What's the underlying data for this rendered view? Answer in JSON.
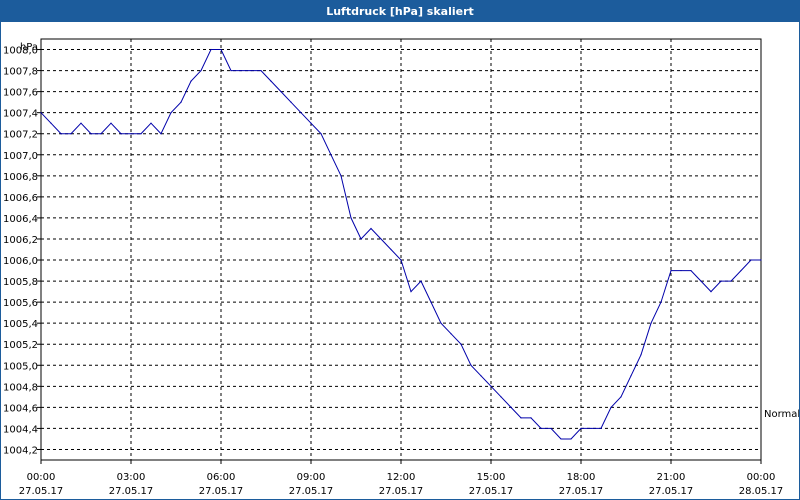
{
  "window": {
    "title": "Luftdruck [hPa] skaliert"
  },
  "chart_data": {
    "type": "line",
    "title": "Luftdruck [hPa] skaliert",
    "ylabel": "hPa",
    "ylim": [
      1004.1,
      1008.1
    ],
    "yticks": [
      1004.2,
      1004.4,
      1004.6,
      1004.8,
      1005.0,
      1005.2,
      1005.4,
      1005.6,
      1005.8,
      1006.0,
      1006.2,
      1006.4,
      1006.6,
      1006.8,
      1007.0,
      1007.2,
      1007.4,
      1007.6,
      1007.8,
      1008.0
    ],
    "ytick_labels": [
      "1004,2",
      "1004,4",
      "1004,6",
      "1004,8",
      "1005,0",
      "1005,2",
      "1005,4",
      "1005,6",
      "1005,8",
      "1006,0",
      "1006,2",
      "1006,4",
      "1006,6",
      "1006,8",
      "1007,0",
      "1007,2",
      "1007,4",
      "1007,6",
      "1007,8",
      "1008,0"
    ],
    "xlim": [
      "2017-05-27 00:00",
      "2017-05-28 00:00"
    ],
    "xticks": [
      {
        "time": "00:00",
        "date": "27.05.17"
      },
      {
        "time": "03:00",
        "date": "27.05.17"
      },
      {
        "time": "06:00",
        "date": "27.05.17"
      },
      {
        "time": "09:00",
        "date": "27.05.17"
      },
      {
        "time": "12:00",
        "date": "27.05.17"
      },
      {
        "time": "15:00",
        "date": "27.05.17"
      },
      {
        "time": "18:00",
        "date": "27.05.17"
      },
      {
        "time": "21:00",
        "date": "27.05.17"
      },
      {
        "time": "00:00",
        "date": "28.05.17"
      }
    ],
    "grid": true,
    "annotation": "Normal",
    "series": [
      {
        "color": "#0000aa",
        "x": [
          "00:00",
          "00:20",
          "00:40",
          "01:00",
          "01:20",
          "01:40",
          "02:00",
          "02:20",
          "02:40",
          "03:00",
          "03:20",
          "03:40",
          "04:00",
          "04:20",
          "04:40",
          "05:00",
          "05:20",
          "05:40",
          "06:00",
          "06:20",
          "06:40",
          "07:00",
          "07:20",
          "07:40",
          "08:00",
          "08:20",
          "08:40",
          "09:00",
          "09:20",
          "09:40",
          "10:00",
          "10:20",
          "10:40",
          "11:00",
          "11:20",
          "11:40",
          "12:00",
          "12:20",
          "12:40",
          "13:00",
          "13:20",
          "13:40",
          "14:00",
          "14:20",
          "14:40",
          "15:00",
          "15:20",
          "15:40",
          "16:00",
          "16:20",
          "16:40",
          "17:00",
          "17:20",
          "17:40",
          "18:00",
          "18:20",
          "18:40",
          "19:00",
          "19:20",
          "19:40",
          "20:00",
          "20:20",
          "20:40",
          "21:00",
          "21:20",
          "21:40",
          "22:00",
          "22:20",
          "22:40",
          "23:00",
          "23:20",
          "23:40",
          "24:00"
        ],
        "values": [
          1007.4,
          1007.3,
          1007.2,
          1007.2,
          1007.3,
          1007.2,
          1007.2,
          1007.3,
          1007.2,
          1007.2,
          1007.2,
          1007.3,
          1007.2,
          1007.4,
          1007.5,
          1007.7,
          1007.8,
          1008.0,
          1008.0,
          1007.8,
          1007.8,
          1007.8,
          1007.8,
          1007.7,
          1007.6,
          1007.5,
          1007.4,
          1007.3,
          1007.2,
          1007.0,
          1006.8,
          1006.4,
          1006.2,
          1006.3,
          1006.2,
          1006.1,
          1006.0,
          1005.7,
          1005.8,
          1005.6,
          1005.4,
          1005.3,
          1005.2,
          1005.0,
          1004.9,
          1004.8,
          1004.7,
          1004.6,
          1004.5,
          1004.5,
          1004.4,
          1004.4,
          1004.3,
          1004.3,
          1004.4,
          1004.4,
          1004.4,
          1004.6,
          1004.7,
          1004.9,
          1005.1,
          1005.4,
          1005.6,
          1005.9,
          1005.9,
          1005.9,
          1005.8,
          1005.7,
          1005.8,
          1005.8,
          1005.9,
          1006.0,
          1006.0
        ]
      }
    ]
  }
}
